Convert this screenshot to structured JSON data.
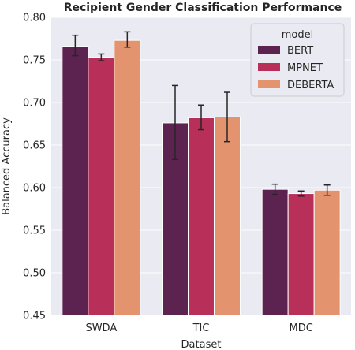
{
  "chart_data": {
    "type": "bar",
    "title": "Recipient Gender Classification Performance",
    "xlabel": "Dataset",
    "ylabel": "Balanced Accuracy",
    "categories": [
      "SWDA",
      "TIC",
      "MDC"
    ],
    "ylim": [
      0.45,
      0.8
    ],
    "yticks": [
      "0.45",
      "0.50",
      "0.55",
      "0.60",
      "0.65",
      "0.70",
      "0.75",
      "0.80"
    ],
    "grid": true,
    "legend": {
      "title": "model",
      "placement": "top-right"
    },
    "series": [
      {
        "name": "BERT",
        "color": "#5c2350",
        "values": [
          0.766,
          0.676,
          0.598
        ],
        "err_low": [
          0.755,
          0.633,
          0.592
        ],
        "err_high": [
          0.779,
          0.72,
          0.604
        ]
      },
      {
        "name": "MPNET",
        "color": "#b8305a",
        "values": [
          0.753,
          0.682,
          0.593
        ],
        "err_low": [
          0.749,
          0.668,
          0.59
        ],
        "err_high": [
          0.757,
          0.697,
          0.596
        ]
      },
      {
        "name": "DEBERTA",
        "color": "#e3936e",
        "values": [
          0.773,
          0.683,
          0.597
        ],
        "err_low": [
          0.765,
          0.654,
          0.591
        ],
        "err_high": [
          0.783,
          0.712,
          0.603
        ]
      }
    ]
  }
}
